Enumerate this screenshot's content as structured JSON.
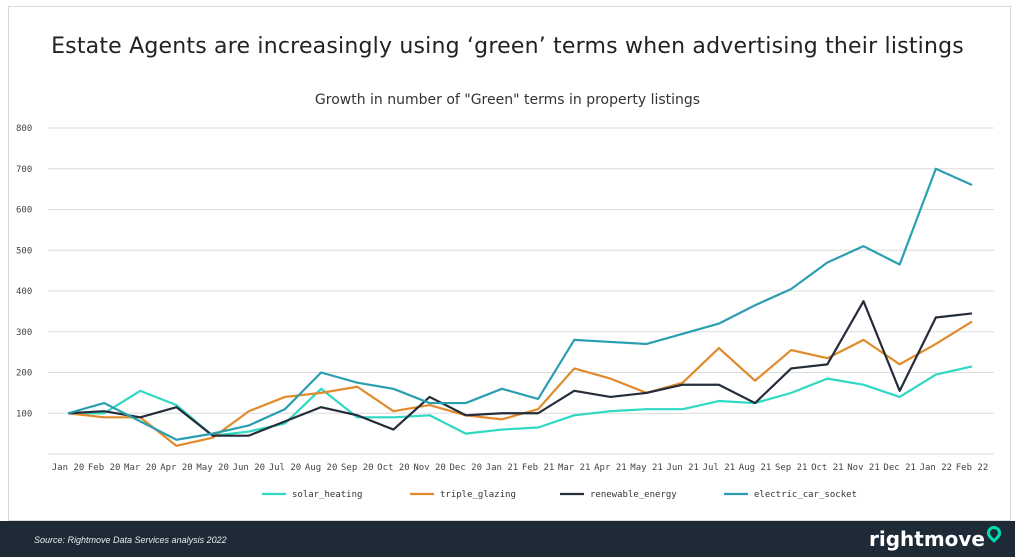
{
  "headline": "Estate Agents are increasingly using ‘green’ terms when advertising their listings",
  "footer": {
    "source": "Source: Rightmove Data Services analysis 2022",
    "brand": "rightmove"
  },
  "colors": {
    "solar_heating": "#2ed8c3",
    "triple_glazing": "#e08a2c",
    "renewable_energy": "#252d3a",
    "electric_car_socket": "#2a9fb0",
    "footer_bg": "#1e2a35",
    "brand_accent": "#00deb6"
  },
  "chart_data": {
    "type": "line",
    "title": "Growth in number of \"Green\" terms in property listings",
    "xlabel": "",
    "ylabel": "",
    "ylim": [
      0,
      800
    ],
    "yticks": [
      100,
      200,
      300,
      400,
      500,
      600,
      700,
      800
    ],
    "grid": true,
    "legend_position": "bottom",
    "categories": [
      "Jan 20",
      "Feb 20",
      "Mar 20",
      "Apr 20",
      "May 20",
      "Jun 20",
      "Jul 20",
      "Aug 20",
      "Sep 20",
      "Oct 20",
      "Nov 20",
      "Dec 20",
      "Jan 21",
      "Feb 21",
      "Mar 21",
      "Apr 21",
      "May 21",
      "Jun 21",
      "Jul 21",
      "Aug 21",
      "Sep 21",
      "Oct 21",
      "Nov 21",
      "Dec 21",
      "Jan 22",
      "Feb 22"
    ],
    "series": [
      {
        "name": "solar_heating",
        "values": [
          100,
          100,
          155,
          120,
          45,
          55,
          75,
          160,
          90,
          90,
          95,
          50,
          60,
          65,
          95,
          105,
          110,
          110,
          130,
          125,
          150,
          185,
          170,
          140,
          195,
          215
        ]
      },
      {
        "name": "triple_glazing",
        "values": [
          100,
          90,
          90,
          20,
          40,
          105,
          140,
          150,
          165,
          105,
          120,
          95,
          85,
          110,
          210,
          185,
          150,
          175,
          260,
          180,
          255,
          235,
          280,
          220,
          270,
          325
        ]
      },
      {
        "name": "renewable_energy",
        "values": [
          100,
          105,
          90,
          115,
          45,
          45,
          80,
          115,
          95,
          60,
          140,
          95,
          100,
          100,
          155,
          140,
          150,
          170,
          170,
          125,
          210,
          220,
          375,
          155,
          335,
          345
        ]
      },
      {
        "name": "electric_car_socket",
        "values": [
          100,
          125,
          80,
          35,
          50,
          70,
          110,
          200,
          175,
          160,
          125,
          125,
          160,
          135,
          280,
          275,
          270,
          295,
          320,
          365,
          405,
          470,
          510,
          465,
          700,
          660
        ]
      }
    ]
  }
}
